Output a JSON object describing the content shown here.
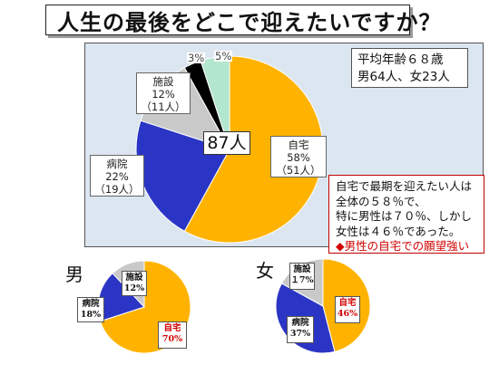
{
  "title": "人生の最後をどこで迎えたいですか？",
  "stats": {
    "line1": "平均年齢６８歳",
    "line2": "男64人、女23人"
  },
  "colors": {
    "home": "#ffb300",
    "hospital": "#2b35c5",
    "facility": "#c9c9c9",
    "other": "#000000",
    "unknown": "#b3e6cf",
    "panel": "#dce6f0",
    "accent": "#d00000"
  },
  "chart_data": [
    {
      "type": "pie",
      "title": "人生の最後をどこで迎えたいですか？",
      "total_label": "87人",
      "slices": [
        {
          "label": "自宅",
          "value": 58,
          "pct_label": "58%",
          "count_label": "（51人）"
        },
        {
          "label": "病院",
          "value": 22,
          "pct_label": "22%",
          "count_label": "（19人）"
        },
        {
          "label": "施設",
          "value": 12,
          "pct_label": "12%",
          "count_label": "（11人）"
        },
        {
          "label": "",
          "value": 3,
          "pct_label": "3%",
          "count_label": ""
        },
        {
          "label": "",
          "value": 5,
          "pct_label": "5%",
          "count_label": ""
        }
      ]
    },
    {
      "type": "pie",
      "title": "男",
      "slices": [
        {
          "label": "自宅",
          "value": 70,
          "pct_label": "70%"
        },
        {
          "label": "病院",
          "value": 18,
          "pct_label": "18%"
        },
        {
          "label": "施設",
          "value": 12,
          "pct_label": "12%"
        }
      ]
    },
    {
      "type": "pie",
      "title": "女",
      "slices": [
        {
          "label": "自宅",
          "value": 46,
          "pct_label": "46%"
        },
        {
          "label": "病院",
          "value": 37,
          "pct_label": "37%"
        },
        {
          "label": "施設",
          "value": 17,
          "pct_label": "１7%"
        }
      ]
    }
  ],
  "note": {
    "line1": "自宅で最期を迎えたい人は",
    "line2": "全体の５８％で、",
    "line3": "特に男性は７０％、しかし",
    "line4": "女性は４６％であった。",
    "line5": "◆男性の自宅での願望強い"
  }
}
